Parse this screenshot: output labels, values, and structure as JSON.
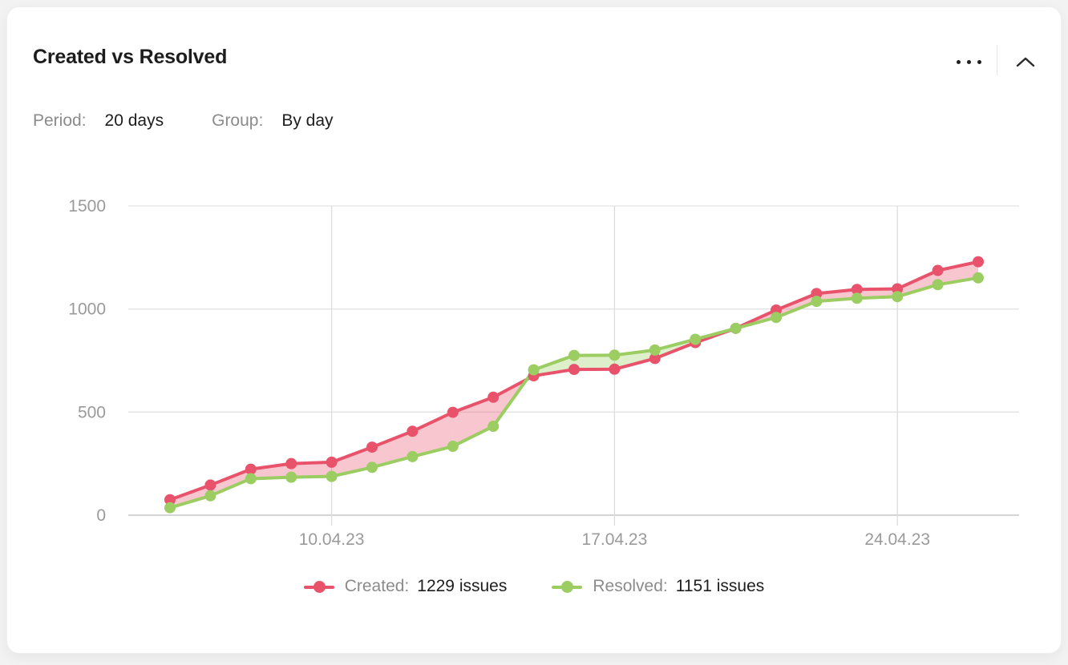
{
  "card": {
    "title": "Created vs Resolved",
    "controls": {
      "period_label": "Period:",
      "period_value": "20 days",
      "group_label": "Group:",
      "group_value": "By day"
    },
    "icons": {
      "more": "ellipsis-icon",
      "collapse": "chevron-up-icon"
    }
  },
  "chart_data": {
    "type": "line",
    "title": "Created vs Resolved",
    "num_points": 21,
    "x_ticks": [
      {
        "index": 4,
        "label": "10.04.23"
      },
      {
        "index": 11,
        "label": "17.04.23"
      },
      {
        "index": 18,
        "label": "24.04.23"
      }
    ],
    "y_ticks": [
      0,
      500,
      1000,
      1500
    ],
    "ylim": [
      0,
      1500
    ],
    "grid": true,
    "legend_position": "bottom",
    "series": [
      {
        "name": "Created",
        "color": "#e8536b",
        "fill": "rgba(232,83,107,0.33)",
        "legend_label": "Created:",
        "legend_value": "1229 issues",
        "total": 1229,
        "values": [
          75,
          146,
          223,
          250,
          257,
          330,
          407,
          499,
          572,
          676,
          707,
          708,
          760,
          837,
          906,
          995,
          1075,
          1095,
          1098,
          1187,
          1229
        ]
      },
      {
        "name": "Resolved",
        "color": "#9bcd62",
        "fill": "rgba(155,205,98,0.33)",
        "legend_label": "Resolved:",
        "legend_value": "1151 issues",
        "total": 1151,
        "values": [
          36,
          94,
          177,
          184,
          188,
          232,
          284,
          334,
          431,
          705,
          775,
          776,
          801,
          853,
          906,
          959,
          1037,
          1052,
          1060,
          1118,
          1151
        ]
      }
    ]
  }
}
